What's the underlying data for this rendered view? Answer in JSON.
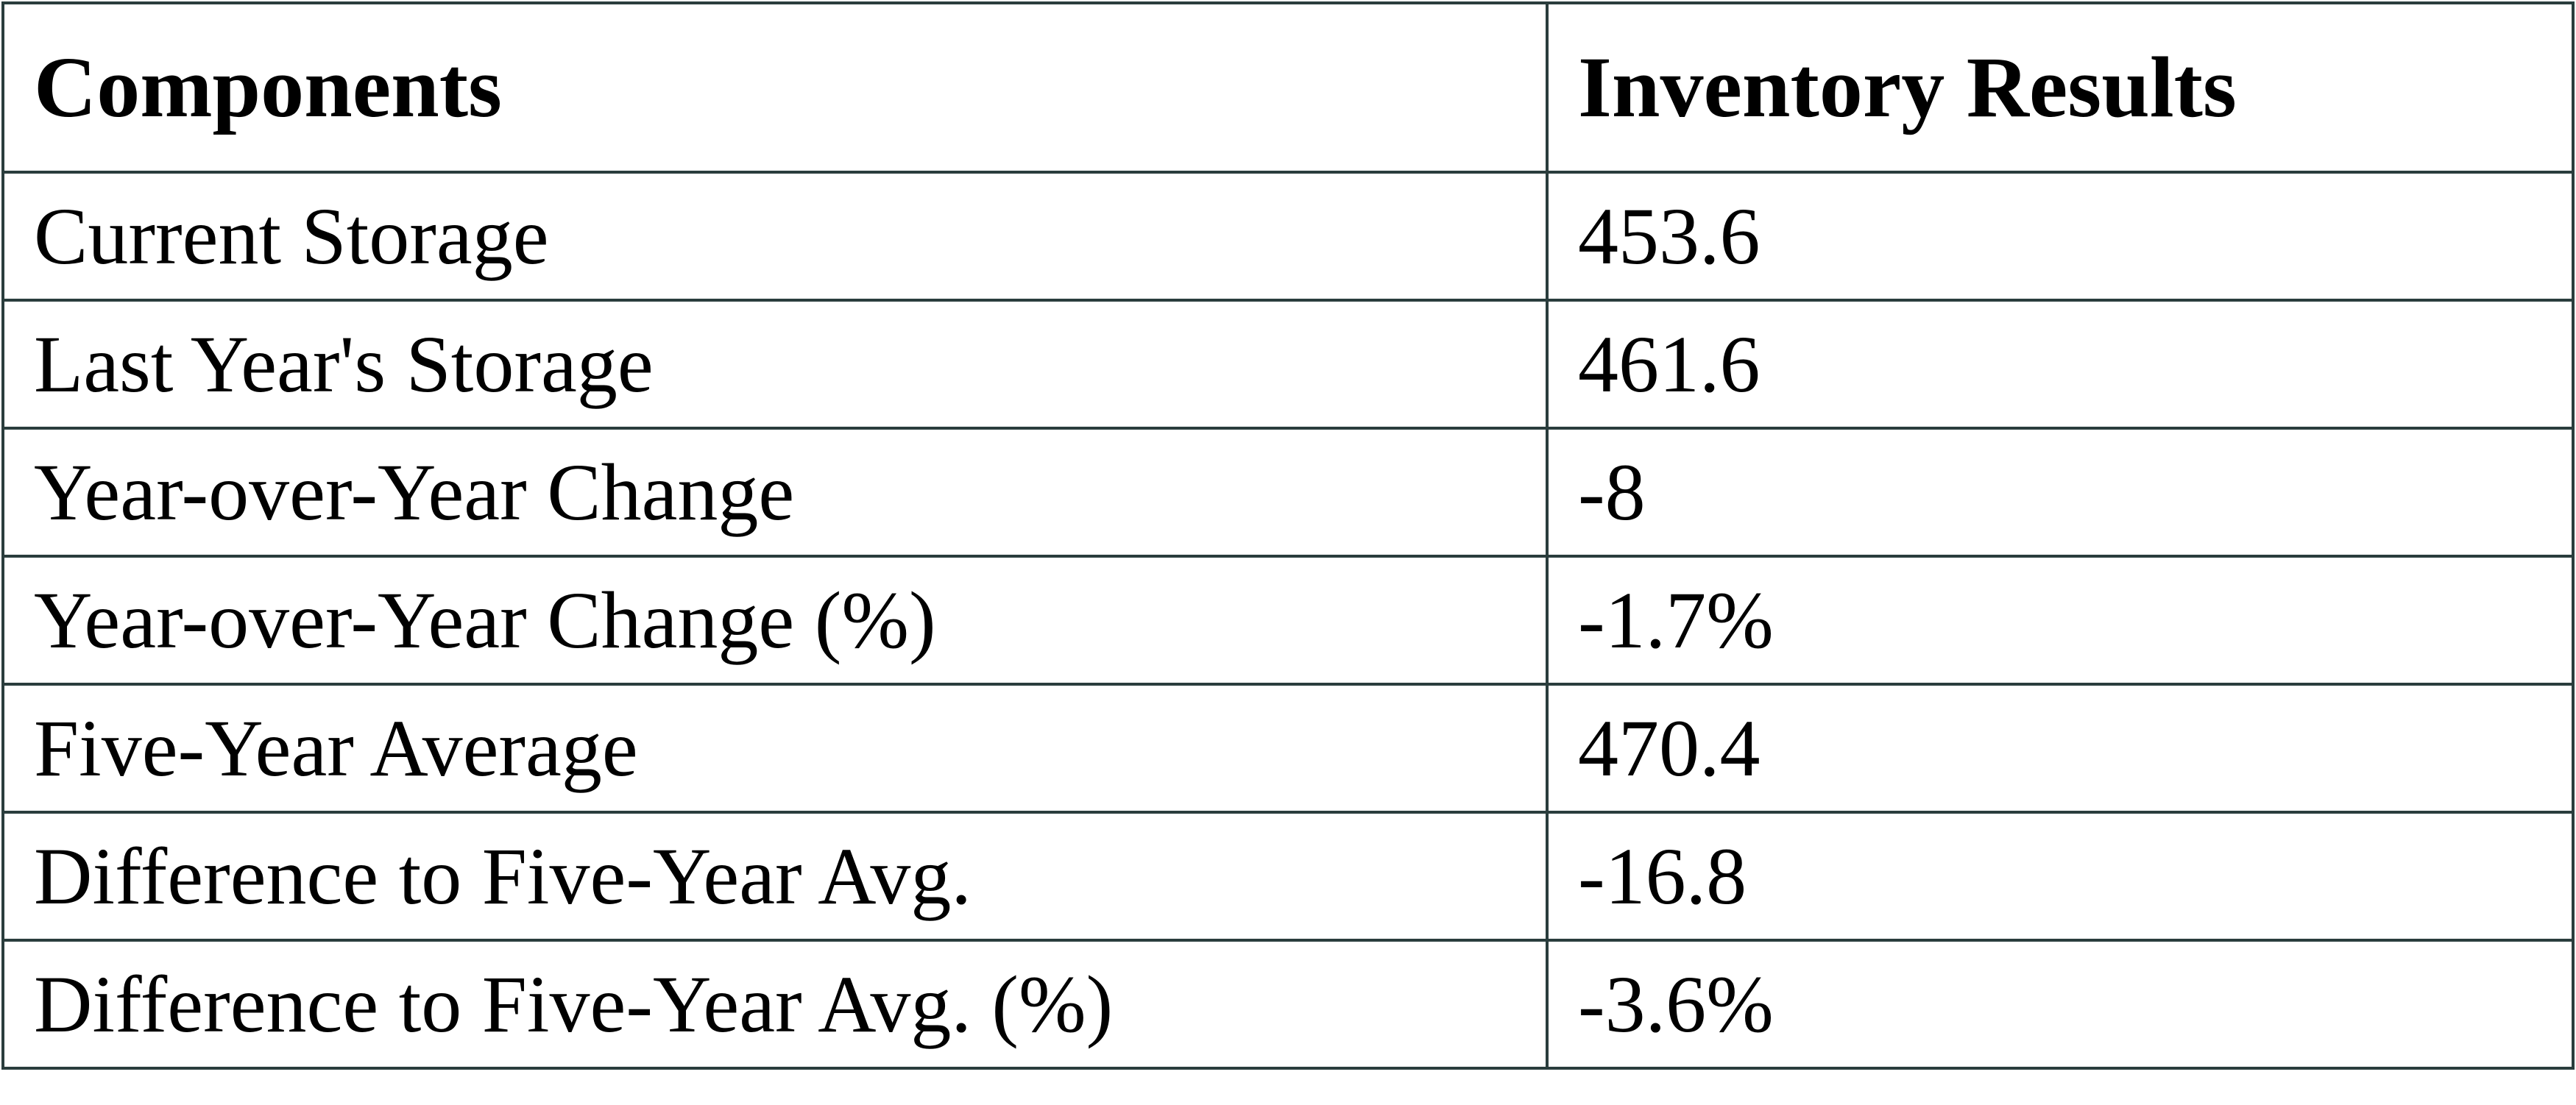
{
  "table": {
    "header": [
      "Components",
      "Inventory Results"
    ],
    "rows": [
      [
        "Current Storage",
        "453.6"
      ],
      [
        "Last Year's Storage",
        "461.6"
      ],
      [
        "Year-over-Year Change",
        "-8"
      ],
      [
        "Year-over-Year Change (%)",
        "-1.7%"
      ],
      [
        "Five-Year Average",
        "470.4"
      ],
      [
        "Difference to Five-Year Avg.",
        "-16.8"
      ],
      [
        "Difference to Five-Year Avg. (%)",
        "-3.6%"
      ]
    ]
  }
}
